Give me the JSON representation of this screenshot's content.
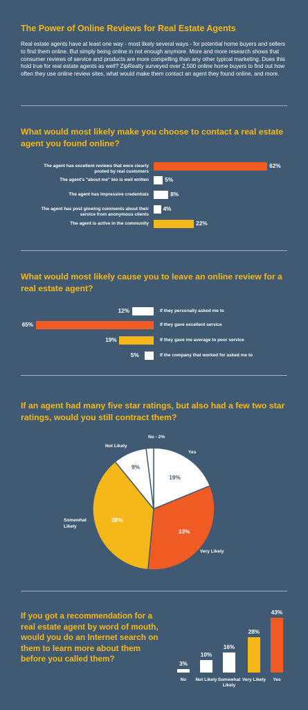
{
  "header": {
    "title": "The Power of Online Reviews for Real Estate Agents",
    "intro": "Real estate agents have at least one way - most likely several ways - for potential home buyers and sellers to find them online. But simply being online in not enough anymore. More and more research shows that consumer reviews of service and products are more compelling than any other typical marketing. Does this hold true for real estate agents as well?  ZipRealty surveyed over 2,500 online home buyers to find out how often they use online review sites, what would make them contact an agent they found online, and more."
  },
  "colors": {
    "background": "#3f5a72",
    "orange": "#f05a23",
    "yellow": "#f6b818",
    "white": "#ffffff",
    "divider": "#9fb1c3"
  },
  "chart_data": [
    {
      "type": "bar",
      "orientation": "horizontal",
      "title": "What would most likely make you choose to contact a real estate agent you found online?",
      "categories": [
        "The agent has excellent reviews that were clearly posted by real customers",
        "The agent's \"about me\" bio is well written",
        "The agent has impressive credentials",
        "The agent has post glowing comments about their service from anonymous clients",
        "The agent is active in the community"
      ],
      "values": [
        62,
        5,
        8,
        4,
        22
      ],
      "labels": [
        "62%",
        "5%",
        "8%",
        "4%",
        "22%"
      ],
      "colors": [
        "#f05a23",
        "#ffffff",
        "#ffffff",
        "#ffffff",
        "#f6b818"
      ]
    },
    {
      "type": "bar",
      "orientation": "horizontal",
      "title": "What would most likely cause you to leave an online review for a real estate agent?",
      "categories": [
        "If they personally asked me to",
        "If they gave excellent service",
        "If they gave me average to poor service",
        "If the company that worked for asked me to"
      ],
      "values": [
        12,
        65,
        19,
        5
      ],
      "labels": [
        "12%",
        "65%",
        "19%",
        "5%"
      ],
      "colors": [
        "#ffffff",
        "#f05a23",
        "#f6b818",
        "#ffffff"
      ]
    },
    {
      "type": "pie",
      "title": "If an agent had many five star ratings, but also had a few two star ratings, would you still contract them?",
      "categories": [
        "Yes",
        "Very Likely",
        "Somewhat Likely",
        "Not Likely",
        "No - 2%"
      ],
      "values": [
        19,
        33,
        38,
        9,
        2
      ],
      "labels": [
        "19%",
        "33%",
        "38%",
        "9%",
        ""
      ],
      "colors": [
        "#ffffff",
        "#f05a23",
        "#f6b818",
        "#ffffff",
        "#ffffff"
      ]
    },
    {
      "type": "bar",
      "orientation": "vertical",
      "title": "If you got a recommendation for a real estate agent by word of mouth, would you do an Internet search on them to learn more about them before you called them?",
      "categories": [
        "No",
        "Not Likely",
        "Somewhat Likely",
        "Very Likely",
        "Yes"
      ],
      "values": [
        3,
        10,
        16,
        28,
        43
      ],
      "labels": [
        "3%",
        "10%",
        "16%",
        "28%",
        "43%"
      ],
      "colors": [
        "#ffffff",
        "#ffffff",
        "#ffffff",
        "#f6b818",
        "#f05a23"
      ]
    }
  ]
}
